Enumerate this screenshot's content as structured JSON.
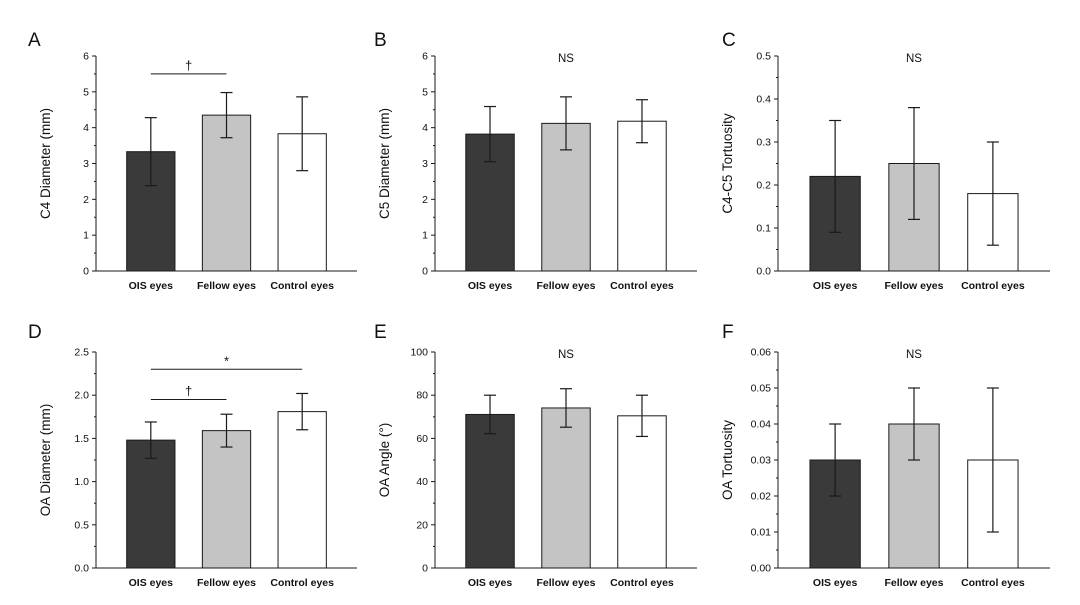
{
  "colors": {
    "bar_fills": [
      "#3a3a3a",
      "#c4c4c4",
      "#ffffff"
    ],
    "stroke": "#1a1a1a"
  },
  "chart_data": [
    {
      "panel": "A",
      "type": "bar",
      "categories": [
        "OIS eyes",
        "Fellow eyes",
        "Control eyes"
      ],
      "values": [
        3.33,
        4.35,
        3.83
      ],
      "errors": [
        0.95,
        0.63,
        1.03
      ],
      "ylabel": "C4 Diameter (mm)",
      "ylim": [
        0,
        6
      ],
      "yticks": [
        "0",
        "1",
        "2",
        "3",
        "4",
        "5",
        "6"
      ],
      "annotation": "",
      "brackets": [
        {
          "from": 0,
          "to": 1,
          "y": 5.5,
          "symbol": "†"
        }
      ]
    },
    {
      "panel": "B",
      "type": "bar",
      "categories": [
        "OIS eyes",
        "Fellow eyes",
        "Control eyes"
      ],
      "values": [
        3.82,
        4.12,
        4.18
      ],
      "errors": [
        0.77,
        0.74,
        0.6
      ],
      "ylabel": "C5 Diameter (mm)",
      "ylim": [
        0,
        6
      ],
      "yticks": [
        "0",
        "1",
        "2",
        "3",
        "4",
        "5",
        "6"
      ],
      "annotation": "NS",
      "brackets": []
    },
    {
      "panel": "C",
      "type": "bar",
      "categories": [
        "OIS eyes",
        "Fellow eyes",
        "Control eyes"
      ],
      "values": [
        0.22,
        0.25,
        0.18
      ],
      "errors": [
        0.13,
        0.13,
        0.12
      ],
      "ylabel": "C4-C5  Tortuosity",
      "ylim": [
        0,
        0.5
      ],
      "yticks": [
        "0.0",
        "0.1",
        "0.2",
        "0.3",
        "0.4",
        "0.5"
      ],
      "annotation": "NS",
      "brackets": []
    },
    {
      "panel": "D",
      "type": "bar",
      "categories": [
        "OIS eyes",
        "Fellow eyes",
        "Control eyes"
      ],
      "values": [
        1.48,
        1.59,
        1.81
      ],
      "errors": [
        0.21,
        0.19,
        0.21
      ],
      "ylabel": "OA Diameter (mm)",
      "ylim": [
        0,
        2.5
      ],
      "yticks": [
        "0.0",
        "0.5",
        "1.0",
        "1.5",
        "2.0",
        "2.5"
      ],
      "annotation": "",
      "brackets": [
        {
          "from": 0,
          "to": 1,
          "y": 1.95,
          "symbol": "†"
        },
        {
          "from": 0,
          "to": 2,
          "y": 2.3,
          "symbol": "*"
        }
      ]
    },
    {
      "panel": "E",
      "type": "bar",
      "categories": [
        "OIS eyes",
        "Fellow eyes",
        "Control eyes"
      ],
      "values": [
        78.2,
        81.5,
        77.5
      ],
      "errors": [
        9.8,
        9.8,
        10.5
      ],
      "ylabel": "OA Angle (°)",
      "ylim": [
        0,
        110
      ],
      "yticks": [
        "0",
        "20",
        "40",
        "60",
        "80",
        "100"
      ],
      "annotation": "NS",
      "brackets": []
    },
    {
      "panel": "F",
      "type": "bar",
      "categories": [
        "OIS eyes",
        "Fellow eyes",
        "Control eyes"
      ],
      "values": [
        0.03,
        0.04,
        0.03
      ],
      "errors": [
        0.01,
        0.01,
        0.02
      ],
      "ylabel": "OA  Tortuosity",
      "ylim": [
        0,
        0.06
      ],
      "yticks": [
        "0.00",
        "0.01",
        "0.02",
        "0.03",
        "0.04",
        "0.05",
        "0.06"
      ],
      "annotation": "NS",
      "brackets": []
    }
  ]
}
